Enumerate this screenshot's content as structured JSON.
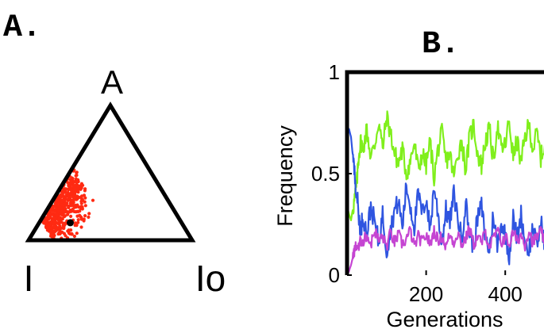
{
  "panels": {
    "a_label": "A.",
    "b_label": "B."
  },
  "chart_data": [
    {
      "type": "scatter",
      "subtype": "ternary",
      "panel": "A.",
      "vertices": {
        "top": "A",
        "left": "I",
        "right": "Io"
      },
      "point_color": "#ff2a12",
      "mean_point_color": "#000000",
      "mean_point": {
        "A": 0.13,
        "I": 0.68,
        "Io": 0.19
      },
      "cloud": {
        "count": 520,
        "I_range": [
          0.45,
          0.85
        ],
        "Io_offset_range": [
          0.08,
          0.3
        ]
      }
    },
    {
      "type": "line",
      "panel": "B.",
      "xlabel": "Generations",
      "ylabel": "Frequency",
      "xlim": [
        0,
        500
      ],
      "ylim": [
        0,
        1
      ],
      "xticks": [
        "200",
        "400"
      ],
      "xtick_values": [
        200,
        400
      ],
      "yticks": [
        "0",
        "0.5",
        "1"
      ],
      "ytick_values": [
        0,
        0.5,
        1
      ],
      "series": [
        {
          "color": "#80ef1c",
          "x": [
            0,
            5,
            10,
            15,
            20,
            25,
            30,
            35,
            40,
            50,
            60,
            70,
            80,
            90,
            100,
            110,
            120,
            130,
            140,
            150,
            160,
            170,
            180,
            190,
            200,
            210,
            220,
            230,
            240,
            250,
            260,
            270,
            280,
            290,
            300,
            310,
            320,
            330,
            340,
            350,
            360,
            370,
            380,
            390,
            400,
            410,
            420,
            430,
            440,
            450,
            460,
            470,
            480,
            490,
            500
          ],
          "y": [
            0.34,
            0.3,
            0.27,
            0.33,
            0.38,
            0.46,
            0.6,
            0.66,
            0.62,
            0.72,
            0.58,
            0.64,
            0.76,
            0.62,
            0.78,
            0.7,
            0.6,
            0.55,
            0.62,
            0.5,
            0.56,
            0.65,
            0.52,
            0.6,
            0.54,
            0.66,
            0.48,
            0.62,
            0.7,
            0.56,
            0.6,
            0.48,
            0.6,
            0.66,
            0.52,
            0.68,
            0.74,
            0.6,
            0.54,
            0.66,
            0.72,
            0.56,
            0.74,
            0.62,
            0.64,
            0.76,
            0.58,
            0.66,
            0.55,
            0.68,
            0.74,
            0.62,
            0.7,
            0.58,
            0.64
          ]
        },
        {
          "color": "#2f55e0",
          "x": [
            0,
            5,
            10,
            15,
            20,
            25,
            30,
            35,
            40,
            50,
            60,
            70,
            80,
            90,
            100,
            110,
            120,
            130,
            140,
            150,
            160,
            170,
            180,
            190,
            200,
            210,
            220,
            230,
            240,
            250,
            260,
            270,
            280,
            290,
            300,
            310,
            320,
            330,
            340,
            350,
            360,
            370,
            380,
            390,
            400,
            410,
            420,
            430,
            440,
            450,
            460,
            470,
            480,
            490,
            500
          ],
          "y": [
            0.7,
            0.72,
            0.68,
            0.58,
            0.48,
            0.4,
            0.28,
            0.22,
            0.3,
            0.2,
            0.34,
            0.26,
            0.16,
            0.3,
            0.12,
            0.22,
            0.32,
            0.36,
            0.24,
            0.44,
            0.34,
            0.24,
            0.4,
            0.3,
            0.38,
            0.22,
            0.44,
            0.3,
            0.16,
            0.32,
            0.26,
            0.4,
            0.28,
            0.18,
            0.36,
            0.2,
            0.14,
            0.28,
            0.34,
            0.18,
            0.12,
            0.3,
            0.14,
            0.26,
            0.2,
            0.1,
            0.28,
            0.18,
            0.3,
            0.16,
            0.12,
            0.24,
            0.14,
            0.26,
            0.16
          ]
        },
        {
          "color": "#c545d2",
          "x": [
            0,
            5,
            10,
            15,
            20,
            25,
            30,
            35,
            40,
            50,
            60,
            70,
            80,
            90,
            100,
            110,
            120,
            130,
            140,
            150,
            160,
            170,
            180,
            190,
            200,
            210,
            220,
            230,
            240,
            250,
            260,
            270,
            280,
            290,
            300,
            310,
            320,
            330,
            340,
            350,
            360,
            370,
            380,
            390,
            400,
            410,
            420,
            430,
            440,
            450,
            460,
            470,
            480,
            490,
            500
          ],
          "y": [
            0.0,
            0.02,
            0.05,
            0.09,
            0.13,
            0.15,
            0.13,
            0.18,
            0.16,
            0.2,
            0.15,
            0.22,
            0.17,
            0.19,
            0.14,
            0.21,
            0.16,
            0.2,
            0.15,
            0.18,
            0.22,
            0.14,
            0.19,
            0.16,
            0.2,
            0.15,
            0.22,
            0.17,
            0.19,
            0.14,
            0.2,
            0.16,
            0.21,
            0.15,
            0.18,
            0.23,
            0.15,
            0.19,
            0.16,
            0.21,
            0.14,
            0.18,
            0.22,
            0.16,
            0.19,
            0.15,
            0.21,
            0.17,
            0.2,
            0.15,
            0.22,
            0.16,
            0.19,
            0.21,
            0.17
          ]
        }
      ]
    }
  ]
}
